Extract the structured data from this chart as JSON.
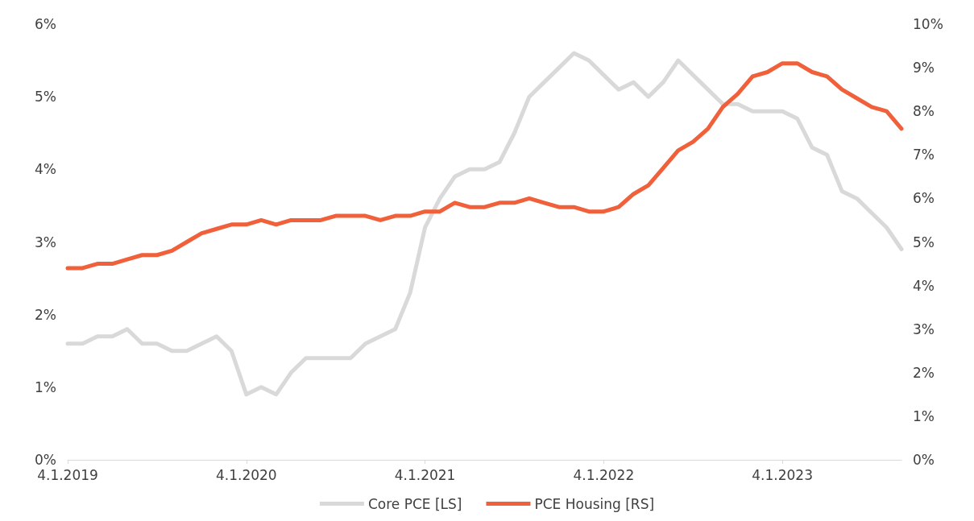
{
  "chart_data": {
    "type": "line",
    "categories": [
      "4.1.2019",
      null,
      null,
      null,
      null,
      null,
      null,
      null,
      null,
      null,
      null,
      null,
      "4.1.2020",
      null,
      null,
      null,
      null,
      null,
      null,
      null,
      null,
      null,
      null,
      null,
      "4.1.2021",
      null,
      null,
      null,
      null,
      null,
      null,
      null,
      null,
      null,
      null,
      null,
      "4.1.2022",
      null,
      null,
      null,
      null,
      null,
      null,
      null,
      null,
      null,
      null,
      null,
      "4.1.2023",
      null,
      null,
      null,
      null,
      null,
      null,
      null,
      null
    ],
    "series": [
      {
        "name": "Core PCE [LS]",
        "color": "#d9d9d9",
        "values": [
          1.6,
          1.6,
          1.7,
          1.7,
          1.8,
          1.6,
          1.6,
          1.5,
          1.5,
          1.6,
          1.7,
          1.5,
          0.9,
          1.0,
          0.9,
          1.2,
          1.4,
          1.4,
          1.4,
          1.4,
          1.6,
          1.7,
          1.8,
          2.3,
          3.2,
          3.6,
          3.9,
          4.0,
          4.0,
          4.1,
          4.5,
          5.0,
          5.2,
          5.4,
          5.6,
          5.5,
          5.3,
          5.1,
          5.2,
          5.0,
          5.2,
          5.5,
          5.3,
          5.1,
          4.9,
          4.9,
          4.8,
          4.8,
          4.8,
          4.7,
          4.3,
          4.2,
          3.7,
          3.6,
          3.4,
          3.2,
          2.9
        ]
      },
      {
        "name": "PCE Housing [RS]",
        "color": "#f0603a",
        "axis": "y2",
        "values": [
          4.4,
          4.4,
          4.5,
          4.5,
          4.6,
          4.7,
          4.7,
          4.8,
          5.0,
          5.2,
          5.3,
          5.4,
          5.4,
          5.5,
          5.4,
          5.5,
          5.5,
          5.5,
          5.6,
          5.6,
          5.6,
          5.5,
          5.6,
          5.6,
          5.7,
          5.7,
          5.9,
          5.8,
          5.8,
          5.9,
          5.9,
          6.0,
          5.9,
          5.8,
          5.8,
          5.7,
          5.7,
          5.8,
          6.1,
          6.3,
          6.7,
          7.1,
          7.3,
          7.6,
          8.1,
          8.4,
          8.8,
          8.9,
          9.1,
          9.1,
          8.9,
          8.8,
          8.5,
          8.3,
          8.1,
          8.0,
          7.6
        ]
      }
    ],
    "ylim": [
      0,
      6
    ],
    "yticks": [
      {
        "value": 0,
        "label": "0%"
      },
      {
        "value": 1,
        "label": "1%"
      },
      {
        "value": 2,
        "label": "2%"
      },
      {
        "value": 3,
        "label": "3%"
      },
      {
        "value": 4,
        "label": "4%"
      },
      {
        "value": 5,
        "label": "5%"
      },
      {
        "value": 6,
        "label": "6%"
      }
    ],
    "y2lim": [
      0,
      10
    ],
    "y2ticks": [
      {
        "value": 0,
        "label": "0%"
      },
      {
        "value": 1,
        "label": "1%"
      },
      {
        "value": 2,
        "label": "2%"
      },
      {
        "value": 3,
        "label": "3%"
      },
      {
        "value": 4,
        "label": "4%"
      },
      {
        "value": 5,
        "label": "5%"
      },
      {
        "value": 6,
        "label": "6%"
      },
      {
        "value": 7,
        "label": "7%"
      },
      {
        "value": 8,
        "label": "8%"
      },
      {
        "value": 9,
        "label": "9%"
      },
      {
        "value": 10,
        "label": "10%"
      }
    ],
    "grid": false,
    "legend": "bottom",
    "marker": "none",
    "line_style": "solid"
  }
}
